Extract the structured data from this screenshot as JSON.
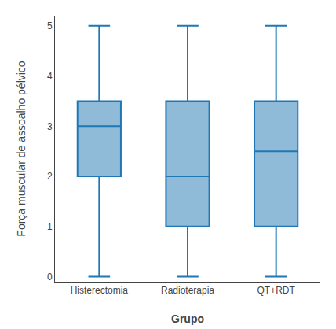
{
  "chart_data": {
    "type": "box",
    "xlabel": "Grupo",
    "ylabel": "Força muscular de assoalho pélvico",
    "categories": [
      "Histerectomia",
      "Radioterapia",
      "QT+RDT"
    ],
    "whisker_low": [
      0,
      0,
      0
    ],
    "q1": [
      2,
      1,
      1
    ],
    "median": [
      3,
      2,
      2.5
    ],
    "q3": [
      3.5,
      3.5,
      3.5
    ],
    "whisker_high": [
      5,
      5,
      5
    ],
    "ylim": [
      -0.1,
      5.2
    ],
    "yticks": [
      0,
      1,
      2,
      3,
      4,
      5
    ],
    "grid": false
  }
}
